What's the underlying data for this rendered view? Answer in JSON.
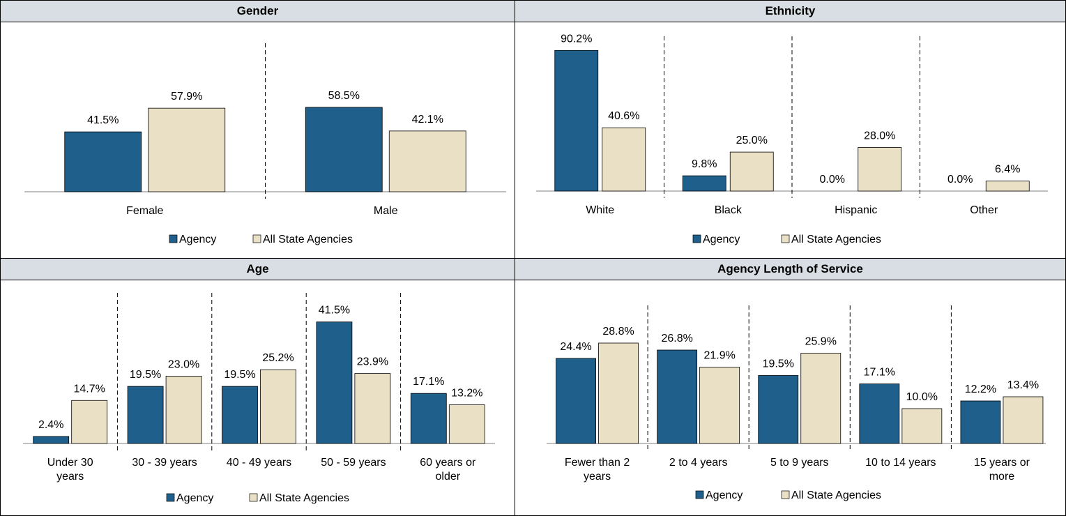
{
  "colors": {
    "agency": "#1f5f8b",
    "state": "#eae0c6",
    "header_bg": "#d9dee4"
  },
  "legend": {
    "agency": "Agency",
    "state": "All State Agencies"
  },
  "chart_data": [
    {
      "id": "gender",
      "type": "bar",
      "title": "Gender",
      "categories": [
        "Female",
        "Male"
      ],
      "series": [
        {
          "name": "Agency",
          "values": [
            41.5,
            58.5
          ]
        },
        {
          "name": "All State Agencies",
          "values": [
            57.9,
            42.1
          ]
        }
      ],
      "unit": "%",
      "ylim": [
        0,
        100
      ],
      "grid": false,
      "legend_position": "bottom"
    },
    {
      "id": "ethnicity",
      "type": "bar",
      "title": "Ethnicity",
      "categories": [
        "White",
        "Black",
        "Hispanic",
        "Other"
      ],
      "series": [
        {
          "name": "Agency",
          "values": [
            90.2,
            9.8,
            0.0,
            0.0
          ]
        },
        {
          "name": "All State Agencies",
          "values": [
            40.6,
            25.0,
            28.0,
            6.4
          ]
        }
      ],
      "unit": "%",
      "ylim": [
        0,
        100
      ],
      "grid": false,
      "legend_position": "bottom"
    },
    {
      "id": "age",
      "type": "bar",
      "title": "Age",
      "categories": [
        "Under 30 years",
        "30 - 39 years",
        "40 - 49 years",
        "50 - 59 years",
        "60 years or older"
      ],
      "series": [
        {
          "name": "Agency",
          "values": [
            2.4,
            19.5,
            19.5,
            41.5,
            17.1
          ]
        },
        {
          "name": "All State Agencies",
          "values": [
            14.7,
            23.0,
            25.2,
            23.9,
            13.2
          ]
        }
      ],
      "unit": "%",
      "ylim": [
        0,
        50
      ],
      "grid": false,
      "legend_position": "bottom"
    },
    {
      "id": "service",
      "type": "bar",
      "title": "Agency Length of Service",
      "categories": [
        "Fewer than 2 years",
        "2 to 4 years",
        "5 to 9 years",
        "10 to 14 years",
        "15 years or more"
      ],
      "series": [
        {
          "name": "Agency",
          "values": [
            24.4,
            26.8,
            19.5,
            17.1,
            12.2
          ]
        },
        {
          "name": "All State Agencies",
          "values": [
            28.8,
            21.9,
            25.9,
            10.0,
            13.4
          ]
        }
      ],
      "unit": "%",
      "ylim": [
        0,
        50
      ],
      "grid": false,
      "legend_position": "bottom"
    }
  ]
}
